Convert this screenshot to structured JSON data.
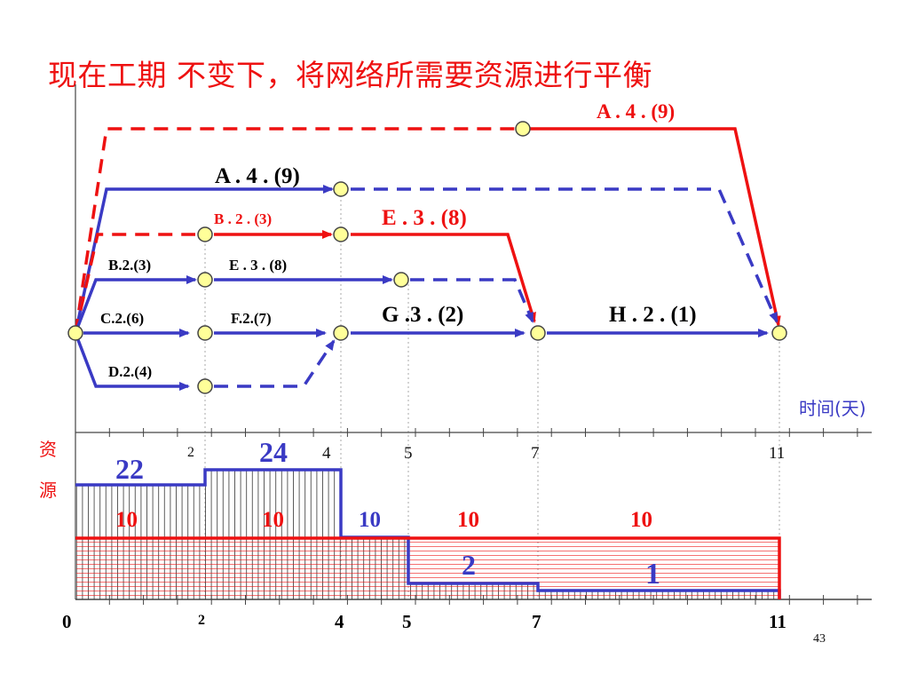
{
  "title": "现在工期 不变下，将网络所需要资源进行平衡",
  "slide_number": "43",
  "colors": {
    "red": "#ee1111",
    "blue": "#3a3ac4",
    "node_fill": "#ffff99",
    "guide": "#aaaaaa"
  },
  "network": {
    "activities": [
      {
        "id": "act-a-red",
        "label": "A . 4 . (9)"
      },
      {
        "id": "act-a-blue",
        "label": "A . 4 . (9)"
      },
      {
        "id": "act-b-red",
        "label": "B . 2 . (3)"
      },
      {
        "id": "act-e-red",
        "label": "E . 3 . (8)"
      },
      {
        "id": "act-b-blue",
        "label": "B.2.(3)"
      },
      {
        "id": "act-e-blue",
        "label": "E . 3 . (8)"
      },
      {
        "id": "act-c",
        "label": "C.2.(6)"
      },
      {
        "id": "act-f",
        "label": "F.2.(7)"
      },
      {
        "id": "act-g",
        "label": "G .3 . (2)"
      },
      {
        "id": "act-h",
        "label": "H . 2 . (1)"
      },
      {
        "id": "act-d",
        "label": "D.2.(4)"
      }
    ],
    "time_axis_label": "时间(天)"
  },
  "resource": {
    "axis_label_chars": [
      "资",
      "源"
    ],
    "top_ticks": [
      "2",
      "4",
      "5",
      "7",
      "11"
    ],
    "bottom_ticks": [
      "0",
      "2",
      "4",
      "5",
      "7",
      "11"
    ],
    "before_profile": {
      "segments": [
        {
          "from": 0,
          "to": 2,
          "level": 22
        },
        {
          "from": 2,
          "to": 4,
          "level": 24
        },
        {
          "from": 4,
          "to": 5,
          "level": 10
        },
        {
          "from": 5,
          "to": 7,
          "level": 2
        },
        {
          "from": 7,
          "to": 11,
          "level": 1
        }
      ]
    },
    "after_profile": {
      "segments": [
        {
          "from": 0,
          "to": 11,
          "level": 10
        }
      ]
    },
    "labels": {
      "blue": [
        "22",
        "24",
        "10",
        "2",
        "1"
      ],
      "red": [
        "10",
        "10",
        "10",
        "10"
      ]
    }
  }
}
